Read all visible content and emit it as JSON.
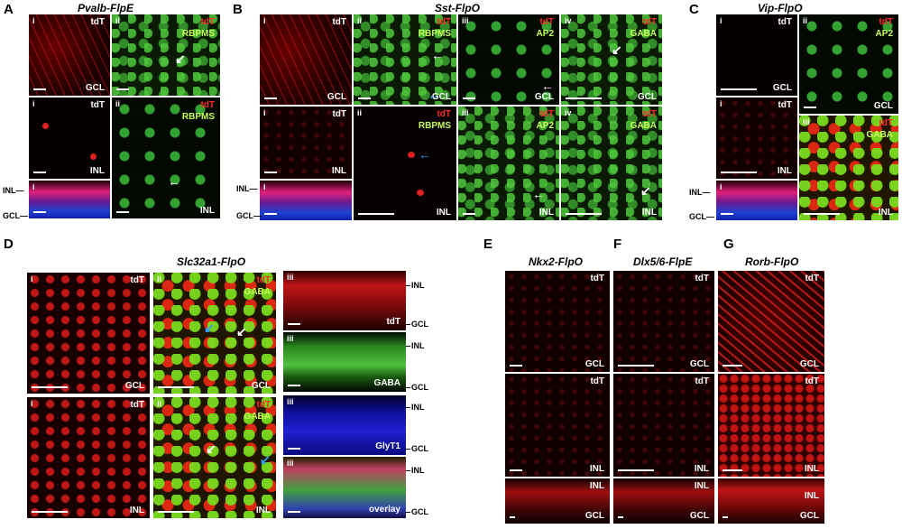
{
  "section_letters": {
    "a": "A",
    "b": "B",
    "c": "C",
    "d": "D",
    "e": "E",
    "f": "F",
    "g": "G"
  },
  "titles": {
    "a": "Pvalb-FlpE",
    "b": "Sst-FlpO",
    "c": "Vip-FlpO",
    "d": "Slc32a1-FlpO",
    "e": "Nkx2-FlpO",
    "f": "Dlx5/6-FlpE",
    "g": "Rorb-FlpO"
  },
  "labels": {
    "i": "i",
    "ii": "ii",
    "iii": "iii",
    "iv": "iv",
    "tdT": "tdT",
    "RBPMS": "RBPMS",
    "AP2": "AP2",
    "GABA": "GABA",
    "GlyT1": "GlyT1",
    "overlay": "overlay",
    "GCL": "GCL",
    "INL": "INL",
    "INL_tick": "INL—",
    "GCL_tick": "GCL—"
  },
  "arrows": {
    "left": "←",
    "down_left": "↙"
  },
  "colors": {
    "tdT": "#ff2a2a",
    "marker": "#c8ff5a",
    "arrow_white": "#ffffff",
    "arrow_blue": "#2fa4ff"
  }
}
